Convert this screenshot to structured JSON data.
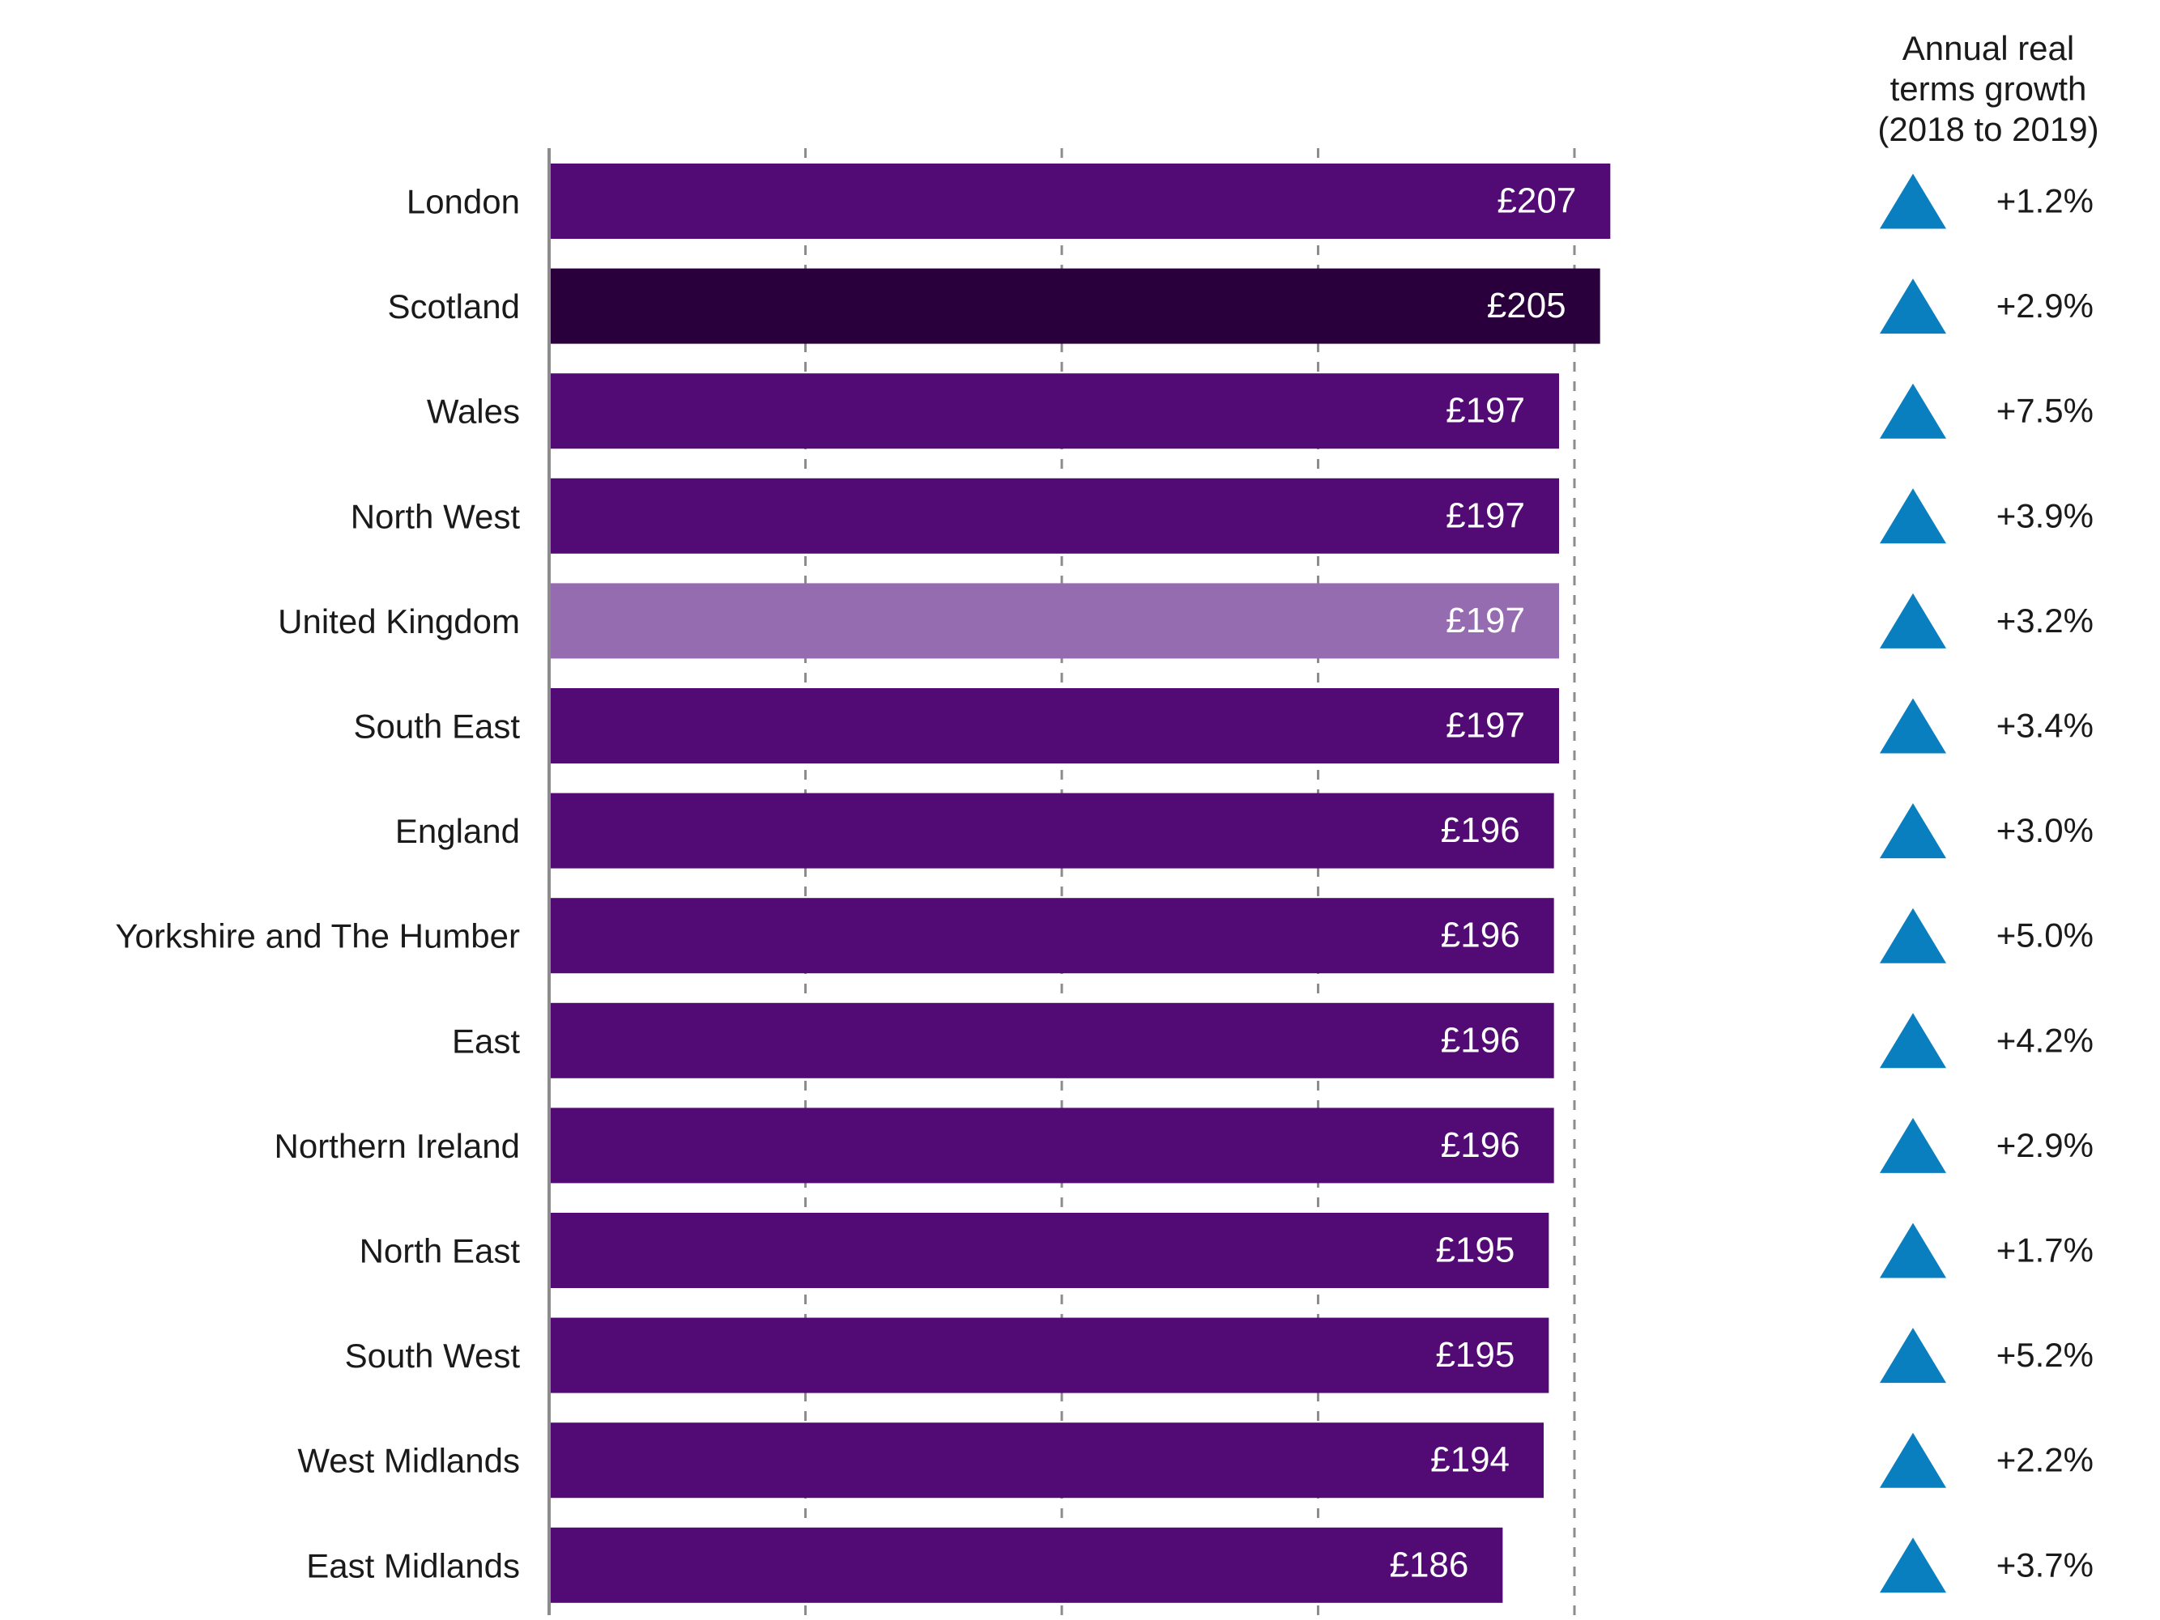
{
  "chart_data": {
    "type": "bar",
    "orientation": "horizontal",
    "categories": [
      "London",
      "Scotland",
      "Wales",
      "North West",
      "United Kingdom",
      "South East",
      "England",
      "Yorkshire and The Humber",
      "East",
      "Northern Ireland",
      "North East",
      "South West",
      "West Midlands",
      "East Midlands"
    ],
    "values": [
      207,
      205,
      197,
      197,
      197,
      197,
      196,
      196,
      196,
      196,
      195,
      195,
      194,
      186
    ],
    "value_labels": [
      "£207",
      "£205",
      "£197",
      "£197",
      "£197",
      "£197",
      "£196",
      "£196",
      "£196",
      "£196",
      "£195",
      "£195",
      "£194",
      "£186"
    ],
    "bar_colors": [
      "#520A74",
      "#2A003C",
      "#520A74",
      "#520A74",
      "#956CB0",
      "#520A74",
      "#520A74",
      "#520A74",
      "#520A74",
      "#520A74",
      "#520A74",
      "#520A74",
      "#520A74",
      "#520A74"
    ],
    "xlim": [
      0,
      210
    ],
    "grid": "vertical dashed",
    "growth_header": [
      "Annual real",
      "terms growth",
      "(2018 to 2019)"
    ],
    "growth": [
      "+1.2%",
      "+2.9%",
      "+7.5%",
      "+3.9%",
      "+3.2%",
      "+3.4%",
      "+3.0%",
      "+5.0%",
      "+4.2%",
      "+2.9%",
      "+1.7%",
      "+5.2%",
      "+2.2%",
      "+3.7%"
    ],
    "growth_marker": "triangle-up-icon",
    "growth_marker_color": "#0A7FC0"
  }
}
